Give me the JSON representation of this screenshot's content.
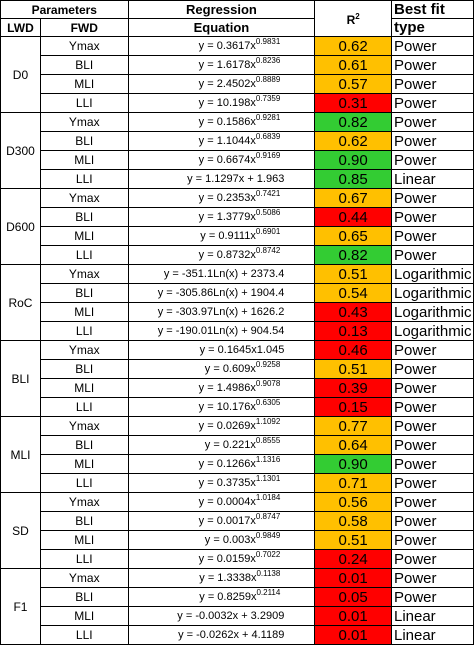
{
  "header": {
    "parameters": "Parameters",
    "regression": "Regression",
    "equation": "Equation",
    "r2_base": "R",
    "r2_sup": "2",
    "best_fit": "Best fit",
    "type": "type",
    "lwd": "LWD",
    "fwd": "FWD"
  },
  "colors": {
    "orange": "#FFC000",
    "green": "#33CC33",
    "red": "#FF0000"
  },
  "groups": [
    {
      "lwd": "D0",
      "rows": [
        {
          "fwd": "Ymax",
          "eq_base": "y = 0.3617x",
          "eq_exp": "0.9831",
          "r2": "0.62",
          "color": "orange",
          "fit": "Power"
        },
        {
          "fwd": "BLI",
          "eq_base": "y = 1.6178x",
          "eq_exp": "0.8236",
          "r2": "0.61",
          "color": "orange",
          "fit": "Power"
        },
        {
          "fwd": "MLI",
          "eq_base": "y = 2.4502x",
          "eq_exp": "0.8889",
          "r2": "0.57",
          "color": "orange",
          "fit": "Power"
        },
        {
          "fwd": "LLI",
          "eq_base": "y = 10.198x",
          "eq_exp": "0.7359",
          "r2": "0.31",
          "color": "red",
          "fit": "Power"
        }
      ]
    },
    {
      "lwd": "D300",
      "rows": [
        {
          "fwd": "Ymax",
          "eq_base": "y = 0.1586x",
          "eq_exp": "0.9281",
          "r2": "0.82",
          "color": "green",
          "fit": "Power"
        },
        {
          "fwd": "BLI",
          "eq_base": "y = 1.1044x",
          "eq_exp": "0.6839",
          "r2": "0.62",
          "color": "orange",
          "fit": "Power"
        },
        {
          "fwd": "MLI",
          "eq_base": "y = 0.6674x",
          "eq_exp": "0.9169",
          "r2": "0.90",
          "color": "green",
          "fit": "Power"
        },
        {
          "fwd": "LLI",
          "eq_base": "y = 1.1297x + 1.963",
          "eq_exp": "",
          "r2": "0.85",
          "color": "green",
          "fit": "Linear"
        }
      ]
    },
    {
      "lwd": "D600",
      "rows": [
        {
          "fwd": "Ymax",
          "eq_base": "y = 0.2353x",
          "eq_exp": "0.7421",
          "r2": "0.67",
          "color": "orange",
          "fit": "Power"
        },
        {
          "fwd": "BLI",
          "eq_base": "y = 1.3779x",
          "eq_exp": "0.5086",
          "r2": "0.44",
          "color": "red",
          "fit": "Power"
        },
        {
          "fwd": "MLI",
          "eq_base": "y = 0.9111x",
          "eq_exp": "0.6901",
          "r2": "0.65",
          "color": "orange",
          "fit": "Power"
        },
        {
          "fwd": "LLI",
          "eq_base": "y = 0.8732x",
          "eq_exp": "0.8742",
          "r2": "0.82",
          "color": "green",
          "fit": "Power"
        }
      ]
    },
    {
      "lwd": "RoC",
      "rows": [
        {
          "fwd": "Ymax",
          "eq_base": "y = -351.1Ln(x) + 2373.4",
          "eq_exp": "",
          "r2": "0.51",
          "color": "orange",
          "fit": "Logarithmic"
        },
        {
          "fwd": "BLI",
          "eq_base": "y = -305.86Ln(x) + 1904.4",
          "eq_exp": "",
          "r2": "0.54",
          "color": "orange",
          "fit": "Logarithmic"
        },
        {
          "fwd": "MLI",
          "eq_base": "y = -303.97Ln(x) + 1626.2",
          "eq_exp": "",
          "r2": "0.43",
          "color": "red",
          "fit": "Logarithmic"
        },
        {
          "fwd": "LLI",
          "eq_base": "y = -190.01Ln(x) + 904.54",
          "eq_exp": "",
          "r2": "0.13",
          "color": "red",
          "fit": "Logarithmic"
        }
      ]
    },
    {
      "lwd": "BLI",
      "rows": [
        {
          "fwd": "Ymax",
          "eq_base": "y = 0.1645x1.045",
          "eq_exp": "",
          "r2": "0.46",
          "color": "red",
          "fit": "Power"
        },
        {
          "fwd": "BLI",
          "eq_base": "y = 0.609x",
          "eq_exp": "0.9258",
          "r2": "0.51",
          "color": "orange",
          "fit": "Power"
        },
        {
          "fwd": "MLI",
          "eq_base": "y = 1.4986x",
          "eq_exp": "0.9078",
          "r2": "0.39",
          "color": "red",
          "fit": "Power"
        },
        {
          "fwd": "LLI",
          "eq_base": "y = 10.176x",
          "eq_exp": "0.6305",
          "r2": "0.15",
          "color": "red",
          "fit": "Power"
        }
      ]
    },
    {
      "lwd": "MLI",
      "rows": [
        {
          "fwd": "Ymax",
          "eq_base": "y = 0.0269x",
          "eq_exp": "1.1092",
          "r2": "0.77",
          "color": "orange",
          "fit": "Power"
        },
        {
          "fwd": "BLI",
          "eq_base": "y = 0.221x",
          "eq_exp": "0.8555",
          "r2": "0.64",
          "color": "orange",
          "fit": "Power"
        },
        {
          "fwd": "MLI",
          "eq_base": "y = 0.1266x",
          "eq_exp": "1.1316",
          "r2": "0.90",
          "color": "green",
          "fit": "Power"
        },
        {
          "fwd": "LLI",
          "eq_base": "y = 0.3735x",
          "eq_exp": "1.1301",
          "r2": "0.71",
          "color": "orange",
          "fit": "Power"
        }
      ]
    },
    {
      "lwd": "SD",
      "rows": [
        {
          "fwd": "Ymax",
          "eq_base": "y = 0.0004x",
          "eq_exp": "1.0184",
          "r2": "0.56",
          "color": "orange",
          "fit": "Power"
        },
        {
          "fwd": "BLI",
          "eq_base": "y = 0.0017x",
          "eq_exp": "0.8747",
          "r2": "0.58",
          "color": "orange",
          "fit": "Power"
        },
        {
          "fwd": "MLI",
          "eq_base": "y = 0.003x",
          "eq_exp": "0.9849",
          "r2": "0.51",
          "color": "orange",
          "fit": "Power"
        },
        {
          "fwd": "LLI",
          "eq_base": "y = 0.0159x",
          "eq_exp": "0.7022",
          "r2": "0.24",
          "color": "red",
          "fit": "Power"
        }
      ]
    },
    {
      "lwd": "F1",
      "rows": [
        {
          "fwd": "Ymax",
          "eq_base": "y = 1.3338x",
          "eq_exp": "0.1138",
          "r2": "0.01",
          "color": "red",
          "fit": "Power"
        },
        {
          "fwd": "BLI",
          "eq_base": "y = 0.8259x",
          "eq_exp": "0.2114",
          "r2": "0.05",
          "color": "red",
          "fit": "Power"
        },
        {
          "fwd": "MLI",
          "eq_base": "y = -0.0032x + 3.2909",
          "eq_exp": "",
          "r2": "0.01",
          "color": "red",
          "fit": "Linear"
        },
        {
          "fwd": "LLI",
          "eq_base": "y = -0.0262x + 4.1189",
          "eq_exp": "",
          "r2": "0.01",
          "color": "red",
          "fit": "Linear"
        }
      ]
    }
  ]
}
